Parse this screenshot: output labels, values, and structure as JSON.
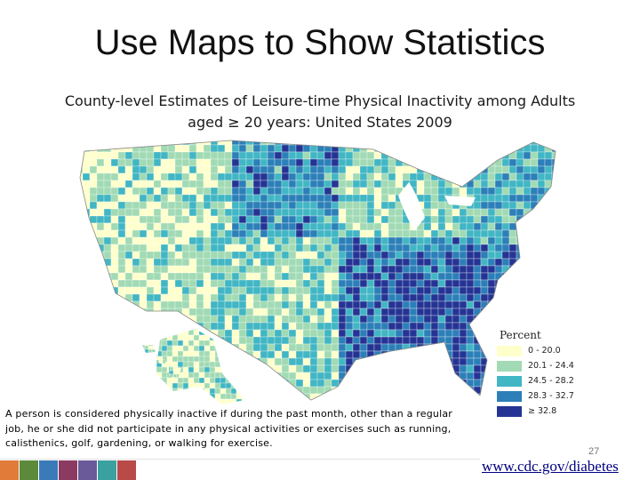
{
  "slide": {
    "title": "Use Maps to Show Statistics",
    "map_title": "County-level Estimates of Leisure-time Physical Inactivity among Adults aged ≥ 20 years:  United States 2009",
    "definition": "A person is considered physically inactive if during the past month, other than a regular job, he or she did not participate in any physical activities or exercises such as running, calisthenics, golf, gardening, or walking for exercise.",
    "page_number": "27",
    "source_link": "www.cdc.gov/diabetes"
  },
  "legend": {
    "title": "Percent",
    "items": [
      {
        "label": "0 - 20.0",
        "color": "#ffffcc"
      },
      {
        "label": "20.1 - 24.4",
        "color": "#a1dab4"
      },
      {
        "label": "24.5 - 28.2",
        "color": "#41b6c4"
      },
      {
        "label": "28.3 - 32.7",
        "color": "#2c7fb8"
      },
      {
        "label": "≥ 32.8",
        "color": "#253494"
      }
    ]
  },
  "footer_strip": {
    "colors": [
      "#e07b39",
      "#5d8a3a",
      "#3a7ab8",
      "#8b3a62",
      "#6a5a9a",
      "#3aa0a0",
      "#b94a48"
    ]
  }
}
